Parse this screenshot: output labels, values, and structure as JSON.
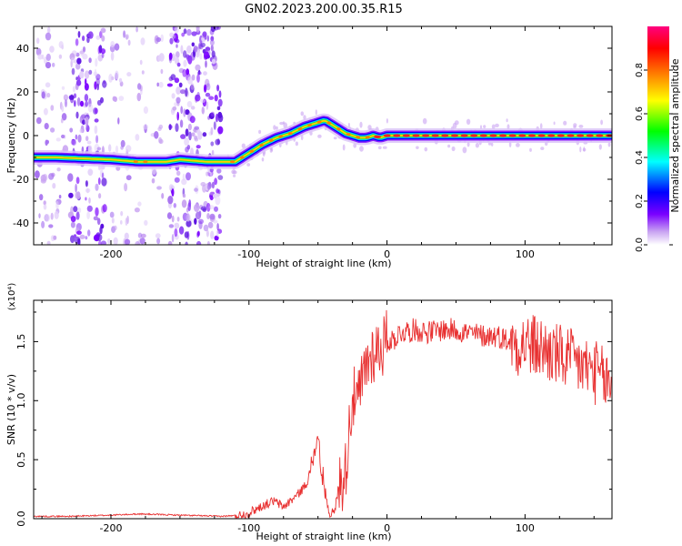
{
  "title": "GN02.2023.200.00.35.R15",
  "chart_data": [
    {
      "type": "heatmap",
      "xlabel": "Height of straight line (km)",
      "ylabel": "Frequency (Hz)",
      "xlim": [
        -256,
        163
      ],
      "ylim": [
        -50,
        50
      ],
      "xticks": [
        -200,
        -100,
        0,
        100
      ],
      "yticks": [
        -40,
        -20,
        0,
        20,
        40
      ],
      "colorbar": {
        "label": "Normalized spectral amplitude",
        "range": [
          0,
          1
        ],
        "ticks": [
          "0.0",
          "0.2",
          "0.4",
          "0.6",
          "0.8"
        ],
        "colors": [
          "#ffffff",
          "#7a00ff",
          "#0000ff",
          "#00ffff",
          "#00ff00",
          "#ffff00",
          "#ff8000",
          "#ff0000",
          "#ff0080"
        ]
      },
      "ridge": {
        "x": [
          -256,
          -240,
          -200,
          -180,
          -160,
          -150,
          -130,
          -120,
          -110,
          -100,
          -90,
          -80,
          -70,
          -60,
          -50,
          -45,
          -40,
          -35,
          -30,
          -25,
          -20,
          -15,
          -10,
          -5,
          0,
          20,
          50,
          100,
          130,
          163
        ],
        "y": [
          -10,
          -10,
          -11,
          -12,
          -12,
          -11,
          -12,
          -12,
          -12,
          -8,
          -4,
          -1,
          1,
          4,
          6,
          7,
          5,
          3,
          1,
          0,
          -1,
          -1,
          0,
          -1,
          0,
          0,
          0,
          0,
          0,
          0
        ]
      },
      "noise_band": [
        -256,
        -118
      ]
    },
    {
      "type": "line",
      "xlabel": "Height of straight line (km)",
      "ylabel": "SNR (10 * v/v)",
      "yexponent": "(x10⁴)",
      "xlim": [
        -256,
        163
      ],
      "ylim": [
        0,
        1.85
      ],
      "xticks": [
        -200,
        -100,
        0,
        100
      ],
      "yticks": [
        "0.0",
        "0.5",
        "1.0",
        "1.5"
      ],
      "line_color": "#e83030",
      "series": [
        {
          "x": [
            -256,
            -230,
            -200,
            -180,
            -150,
            -120,
            -105,
            -100,
            -90,
            -82,
            -75,
            -65,
            -58,
            -52,
            -50,
            -48,
            -45,
            -42,
            -38,
            -35,
            -30,
            -28,
            -25,
            -22,
            -18,
            -15,
            -10,
            -5,
            0,
            5,
            10,
            20,
            30,
            40,
            50,
            60,
            70,
            80,
            90,
            100,
            110,
            120,
            130,
            140,
            150,
            160,
            163
          ],
          "y": [
            0.02,
            0.02,
            0.03,
            0.04,
            0.03,
            0.02,
            0.03,
            0.05,
            0.11,
            0.15,
            0.1,
            0.2,
            0.3,
            0.55,
            0.7,
            0.4,
            0.2,
            0.05,
            0.05,
            0.28,
            0.4,
            0.7,
            1.05,
            0.95,
            1.15,
            1.3,
            1.42,
            1.45,
            1.5,
            1.52,
            1.58,
            1.6,
            1.58,
            1.6,
            1.6,
            1.57,
            1.55,
            1.55,
            1.5,
            1.48,
            1.45,
            1.4,
            1.35,
            1.3,
            1.25,
            1.15,
            1.1
          ]
        }
      ]
    }
  ]
}
